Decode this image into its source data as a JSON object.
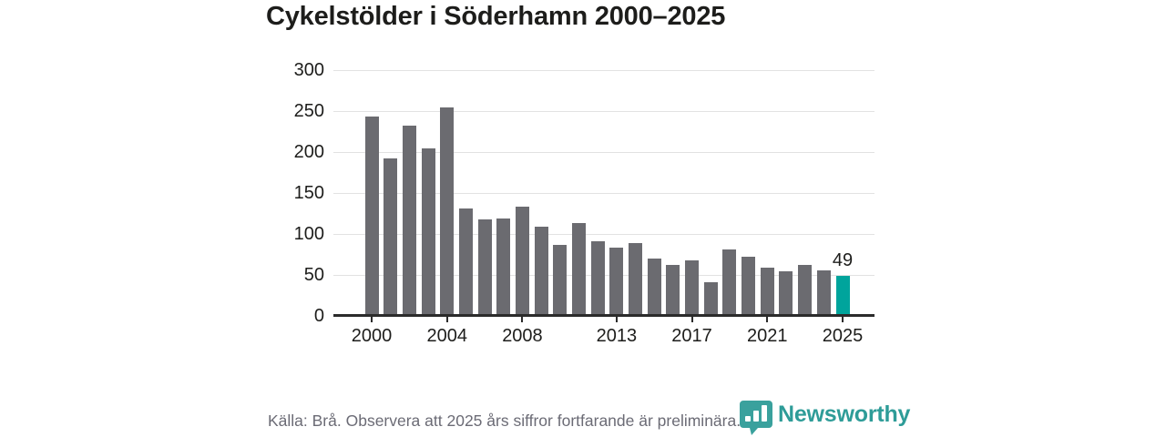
{
  "title": "Cykelstölder i Söderhamn 2000–2025",
  "footer": {
    "source_note": "Källa: Brå. Observera att 2025 års siffror fortfarande är preliminära.",
    "brand_name": "Newsworthy"
  },
  "icons": {
    "brand_logo": "newsworthy-bar-chart-bubble-icon"
  },
  "colors": {
    "bar": "#6b6b70",
    "highlight": "#00a49c",
    "brand_teal": "#3aa19d",
    "brand_text": "#2e9c98",
    "grid": "#e2e2e2",
    "axis": "#2b2b2b",
    "text_dark": "#1d1d1b",
    "text_gray": "#6b6b75"
  },
  "chart_data": {
    "type": "bar",
    "title": "Cykelstölder i Söderhamn 2000–2025",
    "categories": [
      "2000",
      "2001",
      "2002",
      "2003",
      "2004",
      "2005",
      "2006",
      "2007",
      "2008",
      "2009",
      "2010",
      "2011",
      "2012",
      "2013",
      "2014",
      "2015",
      "2016",
      "2017",
      "2018",
      "2019",
      "2020",
      "2021",
      "2022",
      "2023",
      "2024",
      "2025"
    ],
    "values": [
      243,
      192,
      232,
      205,
      255,
      131,
      118,
      119,
      133,
      109,
      87,
      113,
      91,
      83,
      89,
      70,
      62,
      68,
      41,
      81,
      72,
      59,
      55,
      62,
      56,
      49
    ],
    "highlight_index": 25,
    "bar_labels": [
      {
        "index": 25,
        "text": "49"
      }
    ],
    "xtick_labels": [
      "2000",
      "2004",
      "2008",
      "2013",
      "2017",
      "2021",
      "2025"
    ],
    "xtick_indices": [
      0,
      4,
      8,
      13,
      17,
      21,
      25
    ],
    "yticks": [
      0,
      50,
      100,
      150,
      200,
      250,
      300
    ],
    "ylim": [
      0,
      300
    ],
    "xlabel": "",
    "ylabel": "",
    "grid": "horizontal",
    "legend": "none"
  }
}
